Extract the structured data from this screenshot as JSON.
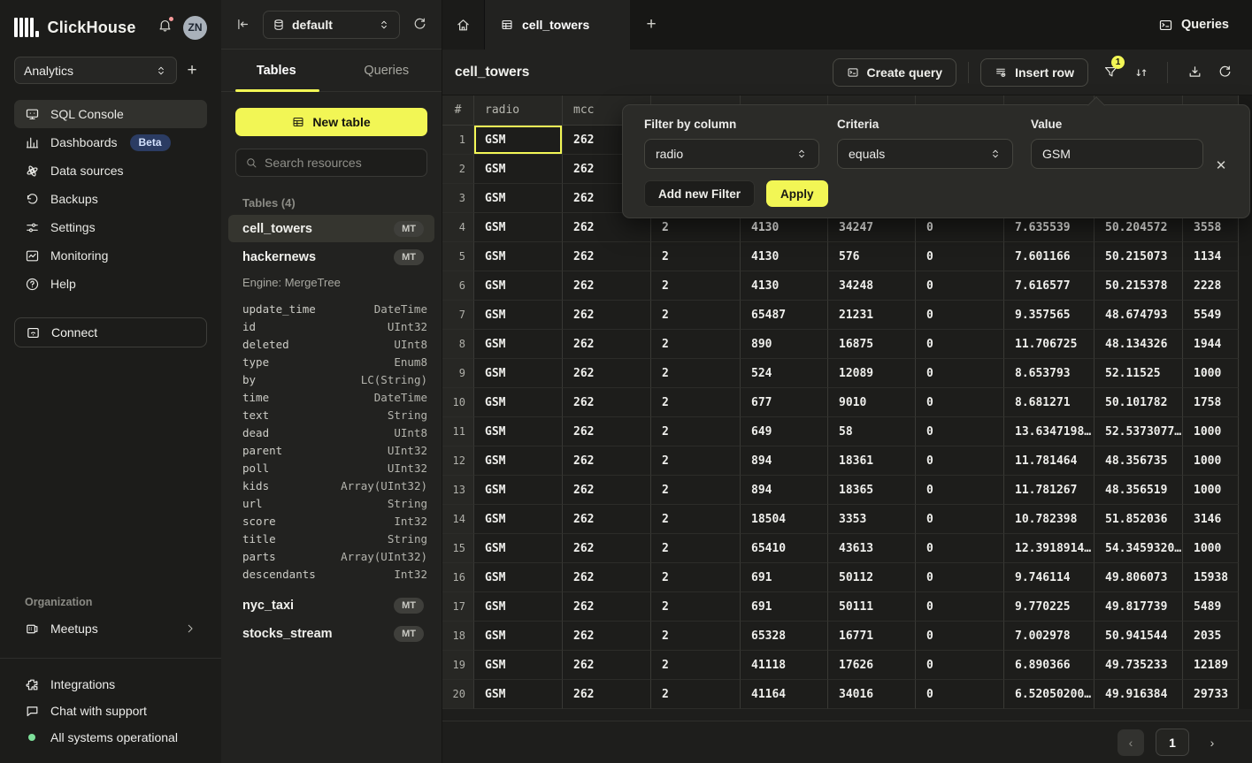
{
  "sidebar": {
    "brand": "ClickHouse",
    "avatar_initials": "ZN",
    "workspace": "Analytics",
    "nav": [
      {
        "label": "SQL Console"
      },
      {
        "label": "Dashboards",
        "badge": "Beta"
      },
      {
        "label": "Data sources"
      },
      {
        "label": "Backups"
      },
      {
        "label": "Settings"
      },
      {
        "label": "Monitoring"
      },
      {
        "label": "Help"
      }
    ],
    "connect_label": "Connect",
    "org_label": "Organization",
    "org_items": [
      {
        "label": "Meetups"
      }
    ],
    "footer_items": [
      {
        "label": "Integrations"
      },
      {
        "label": "Chat with support"
      },
      {
        "label": "All systems operational"
      }
    ]
  },
  "resource_panel": {
    "database": "default",
    "tabs": [
      "Tables",
      "Queries"
    ],
    "new_table_label": "New table",
    "search_placeholder": "Search resources",
    "section_label": "Tables (4)",
    "tables": [
      {
        "name": "cell_towers",
        "engine_badge": "MT"
      },
      {
        "name": "hackernews",
        "engine_badge": "MT"
      },
      {
        "name": "nyc_taxi",
        "engine_badge": "MT"
      },
      {
        "name": "stocks_stream",
        "engine_badge": "MT"
      }
    ],
    "hackernews_engine": "Engine: MergeTree",
    "schema": [
      [
        "update_time",
        "DateTime"
      ],
      [
        "id",
        "UInt32"
      ],
      [
        "deleted",
        "UInt8"
      ],
      [
        "type",
        "Enum8"
      ],
      [
        "by",
        "LC(String)"
      ],
      [
        "time",
        "DateTime"
      ],
      [
        "text",
        "String"
      ],
      [
        "dead",
        "UInt8"
      ],
      [
        "parent",
        "UInt32"
      ],
      [
        "poll",
        "UInt32"
      ],
      [
        "kids",
        "Array(UInt32)"
      ],
      [
        "url",
        "String"
      ],
      [
        "score",
        "Int32"
      ],
      [
        "title",
        "String"
      ],
      [
        "parts",
        "Array(UInt32)"
      ],
      [
        "descendants",
        "Int32"
      ]
    ]
  },
  "main": {
    "tab_title": "cell_towers",
    "queries_label": "Queries",
    "page_title": "cell_towers",
    "toolbar": {
      "create_query": "Create query",
      "insert_row": "Insert row",
      "filter_badge": "1"
    },
    "filter_popup": {
      "column_label": "Filter by column",
      "column_value": "radio",
      "criteria_label": "Criteria",
      "criteria_value": "equals",
      "value_label": "Value",
      "value_value": "GSM",
      "add_filter_label": "Add new Filter",
      "apply_label": "Apply"
    },
    "table": {
      "headers": [
        "#",
        "radio",
        "mcc",
        "",
        "",
        "",
        "",
        "",
        "",
        ""
      ],
      "selected_cell": {
        "row_index": 0,
        "col_index": 1
      },
      "rows": [
        [
          "1",
          "GSM",
          "262",
          "",
          "",
          "",
          "",
          "",
          "",
          ""
        ],
        [
          "2",
          "GSM",
          "262",
          "",
          "",
          "",
          "",
          "",
          "",
          ""
        ],
        [
          "3",
          "GSM",
          "262",
          "",
          "",
          "",
          "",
          "",
          "",
          ""
        ],
        [
          "4",
          "GSM",
          "262",
          "2",
          "4130",
          "34247",
          "0",
          "7.635539",
          "50.204572",
          "3558"
        ],
        [
          "5",
          "GSM",
          "262",
          "2",
          "4130",
          "576",
          "0",
          "7.601166",
          "50.215073",
          "1134"
        ],
        [
          "6",
          "GSM",
          "262",
          "2",
          "4130",
          "34248",
          "0",
          "7.616577",
          "50.215378",
          "2228"
        ],
        [
          "7",
          "GSM",
          "262",
          "2",
          "65487",
          "21231",
          "0",
          "9.357565",
          "48.674793",
          "5549"
        ],
        [
          "8",
          "GSM",
          "262",
          "2",
          "890",
          "16875",
          "0",
          "11.706725",
          "48.134326",
          "1944"
        ],
        [
          "9",
          "GSM",
          "262",
          "2",
          "524",
          "12089",
          "0",
          "8.653793",
          "52.11525",
          "1000"
        ],
        [
          "10",
          "GSM",
          "262",
          "2",
          "677",
          "9010",
          "0",
          "8.681271",
          "50.101782",
          "1758"
        ],
        [
          "11",
          "GSM",
          "262",
          "2",
          "649",
          "58",
          "0",
          "13.6347198…",
          "52.5373077…",
          "1000"
        ],
        [
          "12",
          "GSM",
          "262",
          "2",
          "894",
          "18361",
          "0",
          "11.781464",
          "48.356735",
          "1000"
        ],
        [
          "13",
          "GSM",
          "262",
          "2",
          "894",
          "18365",
          "0",
          "11.781267",
          "48.356519",
          "1000"
        ],
        [
          "14",
          "GSM",
          "262",
          "2",
          "18504",
          "3353",
          "0",
          "10.782398",
          "51.852036",
          "3146"
        ],
        [
          "15",
          "GSM",
          "262",
          "2",
          "65410",
          "43613",
          "0",
          "12.3918914…",
          "54.3459320…",
          "1000"
        ],
        [
          "16",
          "GSM",
          "262",
          "2",
          "691",
          "50112",
          "0",
          "9.746114",
          "49.806073",
          "15938"
        ],
        [
          "17",
          "GSM",
          "262",
          "2",
          "691",
          "50111",
          "0",
          "9.770225",
          "49.817739",
          "5489"
        ],
        [
          "18",
          "GSM",
          "262",
          "2",
          "65328",
          "16771",
          "0",
          "7.002978",
          "50.941544",
          "2035"
        ],
        [
          "19",
          "GSM",
          "262",
          "2",
          "41118",
          "17626",
          "0",
          "6.890366",
          "49.735233",
          "12189"
        ],
        [
          "20",
          "GSM",
          "262",
          "2",
          "41164",
          "34016",
          "0",
          "6.52050200…",
          "49.916384",
          "29733"
        ]
      ]
    },
    "pagination": {
      "prev": "‹",
      "page": "1",
      "next": "›"
    }
  }
}
